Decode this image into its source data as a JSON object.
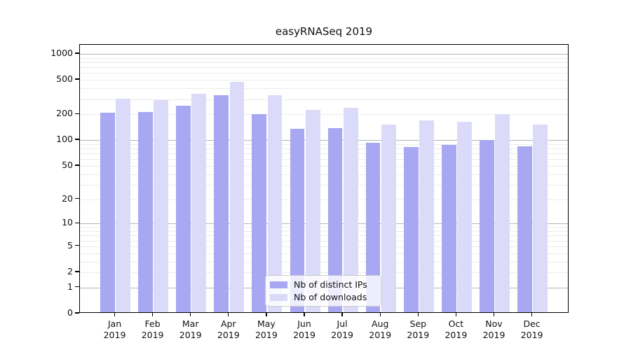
{
  "chart_data": {
    "type": "bar",
    "title": "easyRNASeq 2019",
    "y_scale": "log1p",
    "ylim": [
      0,
      1270
    ],
    "yticks": [
      0,
      1,
      2,
      5,
      10,
      20,
      50,
      100,
      200,
      500,
      1000
    ],
    "grid": "horizontal major and minor gridlines",
    "categories": [
      "Jan",
      "Feb",
      "Mar",
      "Apr",
      "May",
      "Jun",
      "Jul",
      "Aug",
      "Sep",
      "Oct",
      "Nov",
      "Dec"
    ],
    "year_label": "2019",
    "legend_position": "lower center",
    "series": [
      {
        "name": "Nb of distinct IPs",
        "color": "#a7a7f2",
        "values": [
          201,
          205,
          243,
          322,
          192,
          131,
          134,
          89,
          80,
          84,
          96,
          81
        ]
      },
      {
        "name": "Nb of downloads",
        "color": "#dbdbf9",
        "values": [
          290,
          281,
          332,
          460,
          318,
          215,
          230,
          147,
          164,
          157,
          194,
          147
        ]
      }
    ],
    "colors": {
      "major_grid": "#b5b5b5",
      "minor_grid": "#ececec",
      "axis": "#000000",
      "background": "#ffffff"
    }
  }
}
